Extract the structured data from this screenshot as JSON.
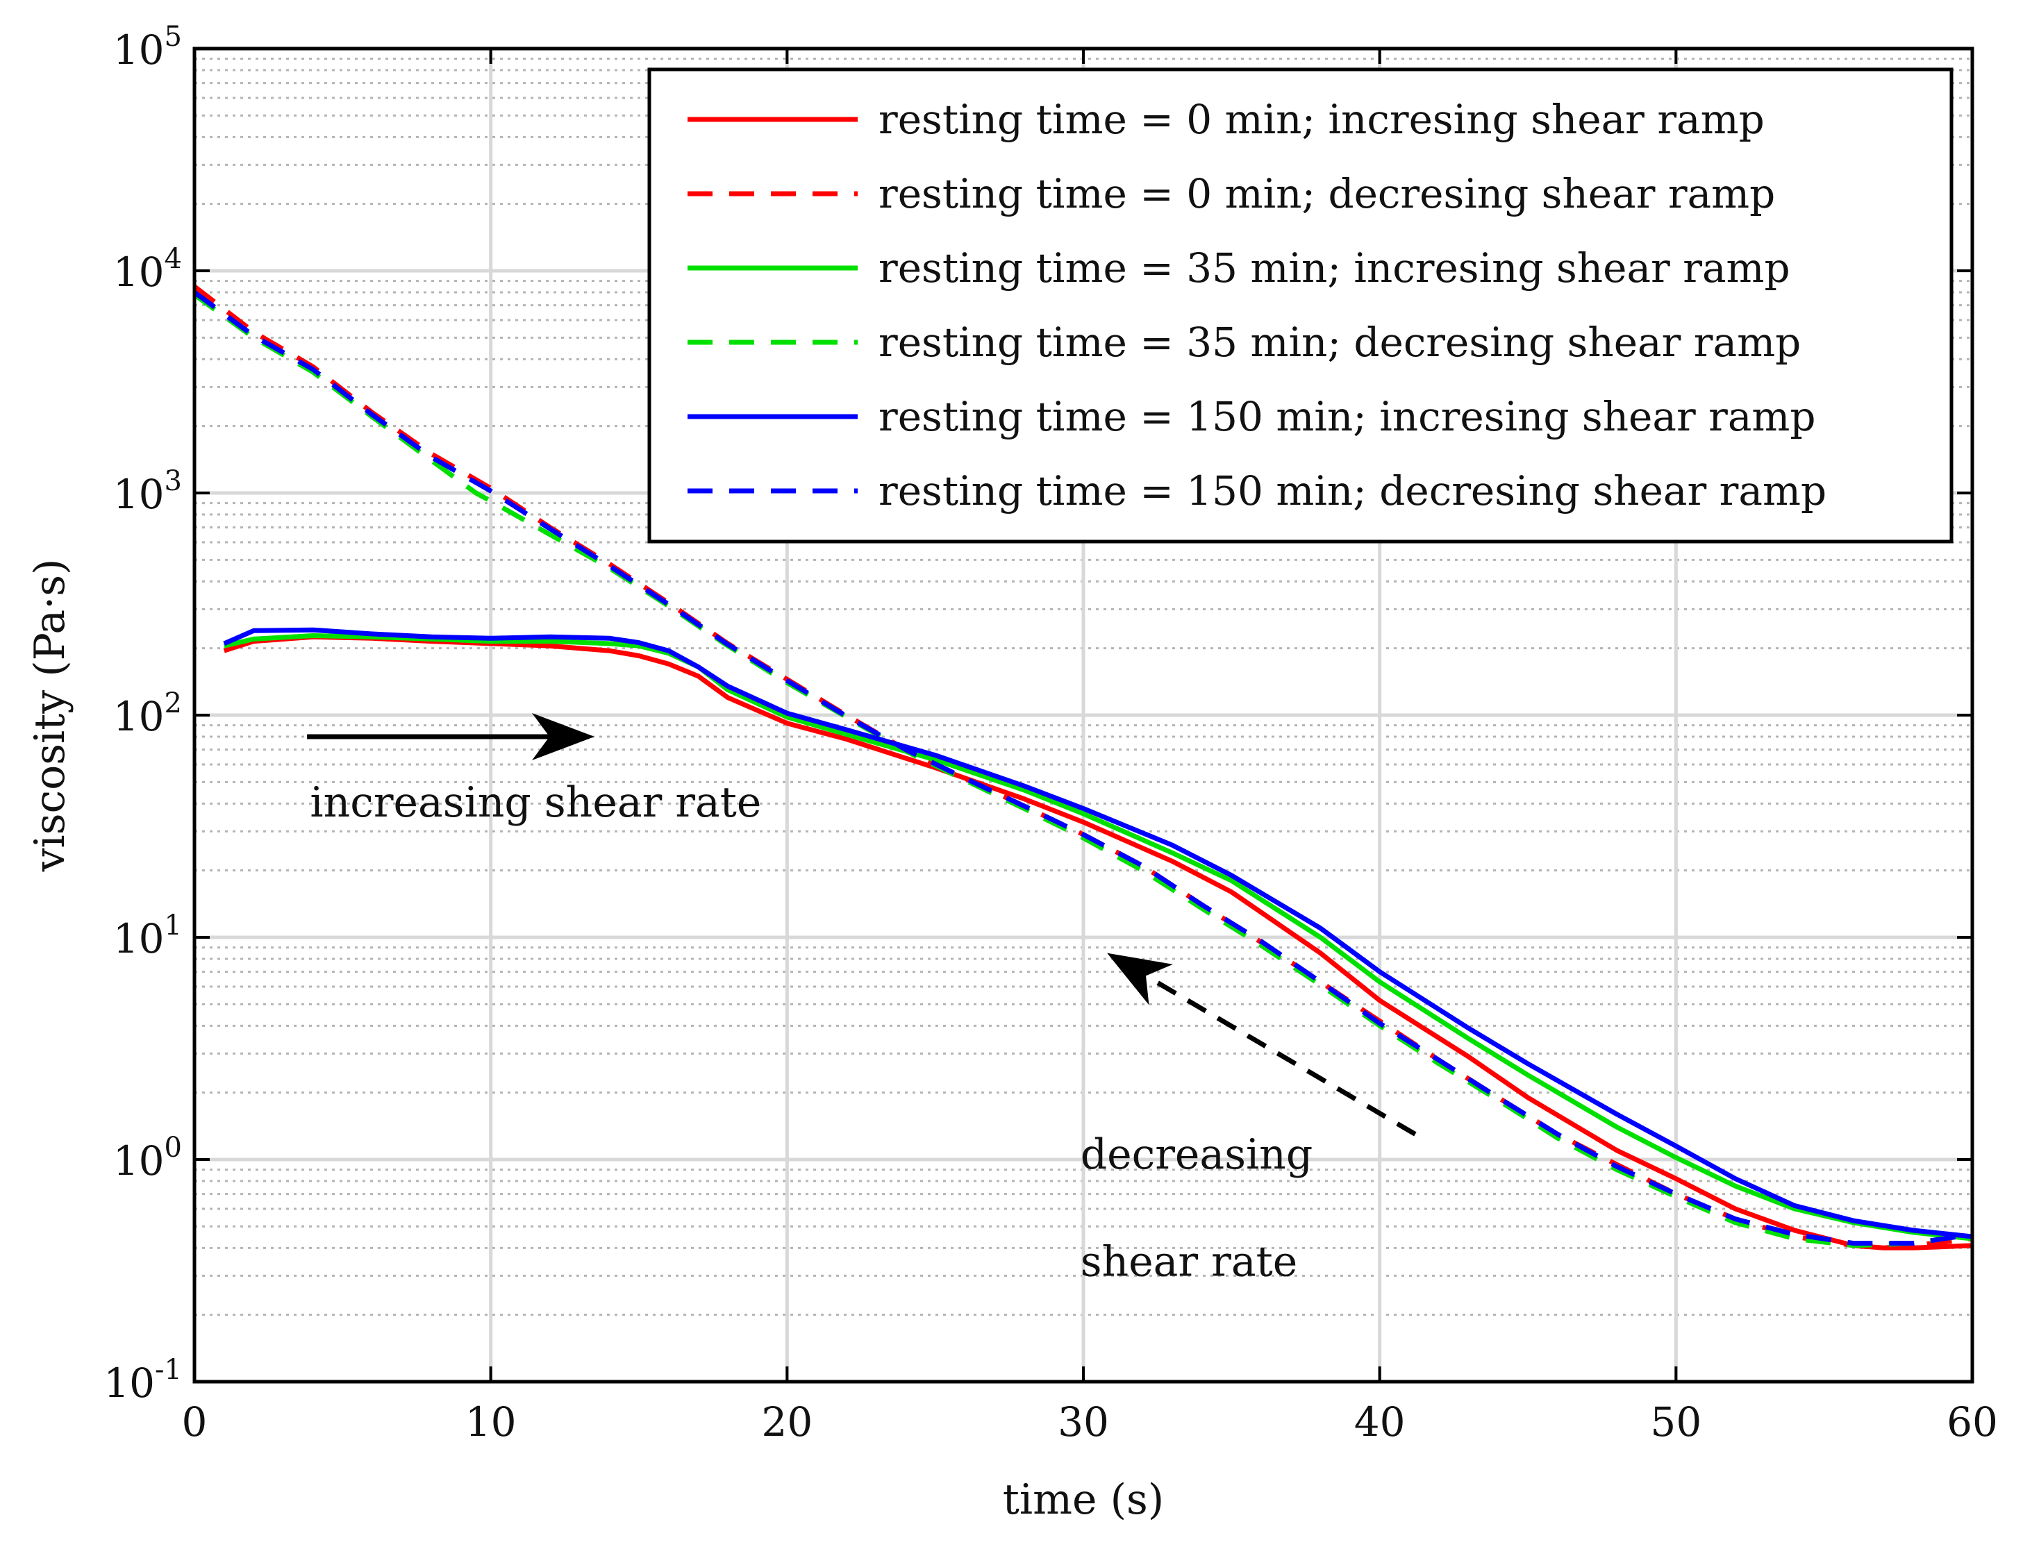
{
  "chart_data": {
    "type": "line",
    "title": "",
    "xlabel": "time (s)",
    "ylabel": "viscosity (Pa·s)",
    "xlim": [
      0,
      60
    ],
    "ylim": [
      0.1,
      100000
    ],
    "yscale": "log",
    "grid": true,
    "legend_position": "top-right",
    "x_ticks": [
      {
        "value": 0,
        "label": "0"
      },
      {
        "value": 10,
        "label": "10"
      },
      {
        "value": 20,
        "label": "20"
      },
      {
        "value": 30,
        "label": "30"
      },
      {
        "value": 40,
        "label": "40"
      },
      {
        "value": 50,
        "label": "50"
      },
      {
        "value": 60,
        "label": "60"
      }
    ],
    "y_ticks": [
      {
        "value": 0.1,
        "base": "10",
        "exp": "-1"
      },
      {
        "value": 1,
        "base": "10",
        "exp": "0"
      },
      {
        "value": 10,
        "base": "10",
        "exp": "1"
      },
      {
        "value": 100,
        "base": "10",
        "exp": "2"
      },
      {
        "value": 1000,
        "base": "10",
        "exp": "3"
      },
      {
        "value": 10000,
        "base": "10",
        "exp": "4"
      },
      {
        "value": 100000,
        "base": "10",
        "exp": "5"
      }
    ],
    "series": [
      {
        "name": "resting time = 0 min; incresing shear ramp",
        "color": "#ff0000",
        "dash": "solid",
        "x": [
          1,
          2,
          4,
          6,
          8,
          10,
          12,
          14,
          15,
          16,
          17,
          18,
          20,
          22,
          25,
          28,
          30,
          33,
          35,
          38,
          40,
          43,
          45,
          48,
          50,
          52,
          54,
          56,
          57,
          58,
          60
        ],
        "y": [
          195,
          215,
          225,
          222,
          215,
          210,
          205,
          195,
          185,
          170,
          150,
          120,
          92,
          78,
          58,
          42,
          33,
          22,
          16,
          8.5,
          5.2,
          2.9,
          1.9,
          1.1,
          0.82,
          0.6,
          0.48,
          0.41,
          0.4,
          0.4,
          0.41
        ]
      },
      {
        "name": "resting time = 0 min; decresing shear ramp",
        "color": "#ff0000",
        "dash": "dashed",
        "x": [
          0,
          2,
          4,
          6,
          8,
          10,
          12,
          14,
          16,
          18,
          20,
          22,
          24,
          26,
          28,
          30,
          32,
          34,
          36,
          38,
          40,
          42,
          44,
          46,
          48,
          50,
          52,
          54,
          56,
          57,
          58,
          60
        ],
        "y": [
          8500,
          5300,
          3700,
          2300,
          1500,
          1050,
          700,
          480,
          320,
          210,
          145,
          100,
          70,
          52,
          39,
          29,
          21,
          14,
          9.5,
          6.3,
          4.2,
          2.8,
          1.9,
          1.3,
          0.95,
          0.7,
          0.54,
          0.45,
          0.41,
          0.4,
          0.41,
          0.44
        ]
      },
      {
        "name": "resting time = 35 min; incresing shear ramp",
        "color": "#00e000",
        "dash": "solid",
        "x": [
          1,
          2,
          4,
          6,
          8,
          10,
          12,
          14,
          15,
          16,
          17,
          18,
          20,
          22,
          25,
          28,
          30,
          33,
          35,
          38,
          40,
          43,
          45,
          48,
          50,
          52,
          54,
          56,
          58,
          60
        ],
        "y": [
          205,
          220,
          228,
          225,
          220,
          215,
          215,
          210,
          205,
          190,
          165,
          130,
          98,
          82,
          63,
          46,
          36,
          24,
          18,
          10,
          6.3,
          3.5,
          2.4,
          1.4,
          1.02,
          0.76,
          0.6,
          0.52,
          0.47,
          0.44
        ]
      },
      {
        "name": "resting time = 35 min; decresing shear ramp",
        "color": "#00e000",
        "dash": "dashed",
        "x": [
          0,
          2,
          4,
          6,
          8,
          9.5,
          10,
          12,
          14,
          16,
          18,
          20,
          22,
          24,
          26,
          28,
          30,
          32,
          34,
          36,
          38,
          40,
          42,
          44,
          46,
          48,
          50,
          52,
          54,
          56,
          58,
          60
        ],
        "y": [
          7800,
          5000,
          3500,
          2200,
          1400,
          1000,
          920,
          650,
          460,
          310,
          205,
          140,
          98,
          69,
          51,
          38,
          28,
          20,
          13.5,
          9.2,
          6.1,
          4.0,
          2.7,
          1.85,
          1.25,
          0.9,
          0.68,
          0.52,
          0.44,
          0.41,
          0.42,
          0.46
        ]
      },
      {
        "name": "resting time = 150 min; incresing shear ramp",
        "color": "#0000ff",
        "dash": "solid",
        "x": [
          1,
          2,
          4,
          6,
          8,
          10,
          12,
          14,
          15,
          16,
          17,
          18,
          20,
          22,
          25,
          28,
          30,
          33,
          35,
          38,
          40,
          43,
          45,
          48,
          50,
          52,
          54,
          56,
          58,
          60
        ],
        "y": [
          210,
          240,
          242,
          232,
          225,
          222,
          225,
          222,
          212,
          195,
          165,
          135,
          102,
          86,
          66,
          48,
          38,
          26,
          19,
          11,
          7,
          3.9,
          2.7,
          1.6,
          1.15,
          0.82,
          0.62,
          0.53,
          0.48,
          0.45
        ]
      },
      {
        "name": "resting time = 150 min; decresing shear ramp",
        "color": "#0000ff",
        "dash": "dashed",
        "x": [
          0,
          2,
          4,
          6,
          8,
          10,
          12,
          14,
          16,
          18,
          20,
          22,
          24,
          26,
          28,
          30,
          32,
          34,
          36,
          38,
          40,
          42,
          44,
          46,
          48,
          50,
          52,
          54,
          56,
          58,
          60
        ],
        "y": [
          8000,
          5100,
          3600,
          2250,
          1450,
          1020,
          690,
          470,
          315,
          208,
          143,
          99,
          70,
          52,
          39,
          29,
          21,
          14,
          9.6,
          6.3,
          4.1,
          2.8,
          1.9,
          1.3,
          0.93,
          0.7,
          0.54,
          0.46,
          0.42,
          0.42,
          0.46
        ]
      }
    ],
    "annotations": [
      {
        "id": "increasing",
        "lines": [
          "increasing shear rate"
        ],
        "arrow": "solid",
        "arrow_from": [
          3.8,
          80
        ],
        "arrow_to": [
          13.5,
          80
        ]
      },
      {
        "id": "decreasing",
        "lines": [
          "decreasing",
          "shear rate"
        ],
        "arrow": "dashed",
        "arrow_from": [
          41.2,
          1.3
        ],
        "arrow_to": [
          30.8,
          8.5
        ]
      }
    ]
  }
}
